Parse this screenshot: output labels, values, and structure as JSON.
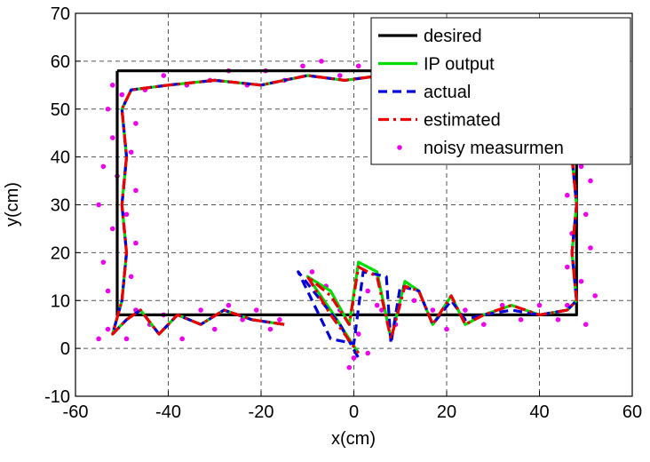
{
  "chart_data": {
    "type": "line",
    "title": "",
    "xlabel": "x(cm)",
    "ylabel": "y(cm)",
    "xlim": [
      -60,
      60
    ],
    "ylim": [
      -10,
      70
    ],
    "x_ticks": [
      "-60",
      "-40",
      "-20",
      "0",
      "20",
      "40",
      "60"
    ],
    "y_ticks": [
      "-10",
      "0",
      "10",
      "20",
      "30",
      "40",
      "50",
      "60",
      "70"
    ],
    "grid": true,
    "legend_position": "top-right",
    "series": [
      {
        "name": "desired",
        "color": "#000000",
        "style": "solid",
        "points": [
          [
            -51,
            58
          ],
          [
            48,
            58
          ],
          [
            48,
            7
          ],
          [
            -51,
            7
          ],
          [
            -51,
            58
          ]
        ]
      },
      {
        "name": "IP output",
        "color": "#00dd00",
        "style": "solid",
        "points": [
          [
            -15,
            5
          ],
          [
            -22,
            6
          ],
          [
            -28,
            8
          ],
          [
            -33,
            5
          ],
          [
            -38,
            7
          ],
          [
            -42,
            3
          ],
          [
            -46,
            8
          ],
          [
            -49,
            6
          ],
          [
            -52,
            3
          ],
          [
            -50,
            10
          ],
          [
            -49,
            20
          ],
          [
            -50,
            30
          ],
          [
            -49,
            40
          ],
          [
            -50,
            50
          ],
          [
            -48,
            54
          ],
          [
            -40,
            55
          ],
          [
            -30,
            56
          ],
          [
            -20,
            55
          ],
          [
            -10,
            57
          ],
          [
            -2,
            56
          ],
          [
            6,
            57
          ],
          [
            14,
            56
          ],
          [
            23,
            57
          ],
          [
            32,
            56
          ],
          [
            40,
            57
          ],
          [
            46,
            56
          ],
          [
            48,
            52
          ],
          [
            47,
            40
          ],
          [
            48,
            30
          ],
          [
            47,
            20
          ],
          [
            48,
            10
          ],
          [
            46,
            8
          ],
          [
            40,
            7
          ],
          [
            34,
            9
          ],
          [
            28,
            7
          ],
          [
            24,
            5
          ],
          [
            21,
            11
          ],
          [
            17,
            5
          ],
          [
            14,
            12
          ],
          [
            11,
            14
          ],
          [
            8,
            2
          ],
          [
            5,
            16
          ],
          [
            1,
            18
          ],
          [
            -1,
            5
          ],
          [
            -5,
            12
          ],
          [
            -10,
            15
          ],
          [
            -5,
            8
          ],
          [
            1,
            -1
          ]
        ]
      },
      {
        "name": "actual",
        "color": "#0000dd",
        "style": "dashed",
        "points": [
          [
            -15,
            5
          ],
          [
            -22,
            6
          ],
          [
            -28,
            8
          ],
          [
            -33,
            5
          ],
          [
            -38,
            7
          ],
          [
            -42,
            3
          ],
          [
            -46,
            8
          ],
          [
            -49,
            6
          ],
          [
            -52,
            3
          ],
          [
            -50,
            10
          ],
          [
            -49,
            20
          ],
          [
            -50,
            30
          ],
          [
            -49,
            40
          ],
          [
            -50,
            50
          ],
          [
            -48,
            54
          ],
          [
            -40,
            55
          ],
          [
            -30,
            56
          ],
          [
            -20,
            55
          ],
          [
            -10,
            57
          ],
          [
            -2,
            56
          ],
          [
            6,
            57
          ],
          [
            14,
            56
          ],
          [
            23,
            57
          ],
          [
            32,
            56
          ],
          [
            40,
            57
          ],
          [
            46,
            56
          ],
          [
            48,
            52
          ],
          [
            47,
            40
          ],
          [
            48,
            30
          ],
          [
            47,
            20
          ],
          [
            48,
            10
          ],
          [
            46,
            8
          ],
          [
            40,
            7
          ],
          [
            34,
            8
          ],
          [
            28,
            7
          ],
          [
            24,
            6
          ],
          [
            21,
            10
          ],
          [
            17,
            5
          ],
          [
            14,
            12
          ],
          [
            10,
            13
          ],
          [
            8,
            1
          ],
          [
            7,
            15
          ],
          [
            2,
            16
          ],
          [
            0,
            1
          ],
          [
            -5,
            2
          ],
          [
            -12,
            16
          ],
          [
            -3,
            5
          ],
          [
            1,
            -2
          ]
        ]
      },
      {
        "name": "estimated",
        "color": "#ee0000",
        "style": "dashdot",
        "points": [
          [
            -15,
            5
          ],
          [
            -22,
            6
          ],
          [
            -28,
            8
          ],
          [
            -33,
            5
          ],
          [
            -38,
            7
          ],
          [
            -42,
            3
          ],
          [
            -46,
            8
          ],
          [
            -49,
            6
          ],
          [
            -52,
            3
          ],
          [
            -50,
            10
          ],
          [
            -49,
            20
          ],
          [
            -50,
            30
          ],
          [
            -49,
            40
          ],
          [
            -50,
            50
          ],
          [
            -48,
            54
          ],
          [
            -40,
            55
          ],
          [
            -30,
            56
          ],
          [
            -20,
            55
          ],
          [
            -10,
            57
          ],
          [
            -2,
            56
          ],
          [
            6,
            57
          ],
          [
            14,
            56
          ],
          [
            23,
            57
          ],
          [
            32,
            56
          ],
          [
            40,
            57
          ],
          [
            46,
            56
          ],
          [
            48,
            52
          ],
          [
            47,
            40
          ],
          [
            48,
            30
          ],
          [
            47,
            20
          ],
          [
            48,
            10
          ],
          [
            46,
            8
          ],
          [
            40,
            7
          ],
          [
            34,
            9
          ],
          [
            28,
            7
          ],
          [
            24,
            5
          ],
          [
            21,
            11
          ],
          [
            17,
            5
          ],
          [
            14,
            12
          ],
          [
            11,
            13
          ],
          [
            8,
            2
          ],
          [
            5,
            15
          ],
          [
            1,
            17
          ],
          [
            -1,
            5
          ],
          [
            -5,
            11
          ],
          [
            -10,
            15
          ],
          [
            -5,
            7
          ],
          [
            1,
            -1
          ]
        ]
      },
      {
        "name": "noisy measurmen",
        "color": "#ee00ee",
        "style": "markers",
        "points": [
          [
            -55,
            2
          ],
          [
            -53,
            4
          ],
          [
            -49,
            2
          ],
          [
            -47,
            8
          ],
          [
            -44,
            5
          ],
          [
            -41,
            7
          ],
          [
            -37,
            2
          ],
          [
            -33,
            8
          ],
          [
            -30,
            4
          ],
          [
            -27,
            9
          ],
          [
            -24,
            6
          ],
          [
            -21,
            8
          ],
          [
            -18,
            4
          ],
          [
            -16,
            6
          ],
          [
            -53,
            12
          ],
          [
            -48,
            15
          ],
          [
            -54,
            18
          ],
          [
            -47,
            22
          ],
          [
            -52,
            25
          ],
          [
            -49,
            28
          ],
          [
            -55,
            30
          ],
          [
            -47,
            33
          ],
          [
            -51,
            36
          ],
          [
            -54,
            38
          ],
          [
            -48,
            41
          ],
          [
            -52,
            44
          ],
          [
            -47,
            47
          ],
          [
            -53,
            50
          ],
          [
            -50,
            53
          ],
          [
            -52,
            55
          ],
          [
            -45,
            54
          ],
          [
            -41,
            57
          ],
          [
            -36,
            55
          ],
          [
            -31,
            56
          ],
          [
            -27,
            58
          ],
          [
            -23,
            55
          ],
          [
            -19,
            58
          ],
          [
            -15,
            56
          ],
          [
            -11,
            59
          ],
          [
            -7,
            60
          ],
          [
            -3,
            57
          ],
          [
            1,
            59
          ],
          [
            5,
            56
          ],
          [
            9,
            58
          ],
          [
            13,
            55
          ],
          [
            17,
            58
          ],
          [
            21,
            56
          ],
          [
            25,
            59
          ],
          [
            29,
            56
          ],
          [
            33,
            58
          ],
          [
            37,
            55
          ],
          [
            41,
            58
          ],
          [
            45,
            54
          ],
          [
            49,
            57
          ],
          [
            46,
            50
          ],
          [
            50,
            45
          ],
          [
            45,
            42
          ],
          [
            49,
            38
          ],
          [
            51,
            35
          ],
          [
            46,
            32
          ],
          [
            50,
            28
          ],
          [
            47,
            24
          ],
          [
            51,
            21
          ],
          [
            46,
            17
          ],
          [
            49,
            14
          ],
          [
            52,
            11
          ],
          [
            46,
            9
          ],
          [
            50,
            5
          ],
          [
            44,
            6
          ],
          [
            40,
            9
          ],
          [
            36,
            6
          ],
          [
            32,
            9
          ],
          [
            28,
            5
          ],
          [
            24,
            8
          ],
          [
            20,
            4
          ],
          [
            17,
            8
          ],
          [
            13,
            10
          ],
          [
            9,
            5
          ],
          [
            6,
            8
          ],
          [
            3,
            12
          ],
          [
            1,
            3
          ],
          [
            -1,
            -4
          ],
          [
            0,
            -2
          ],
          [
            -3,
            8
          ],
          [
            -6,
            13
          ],
          [
            -9,
            16
          ],
          [
            3,
            -1
          ],
          [
            5,
            9
          ]
        ]
      }
    ]
  }
}
